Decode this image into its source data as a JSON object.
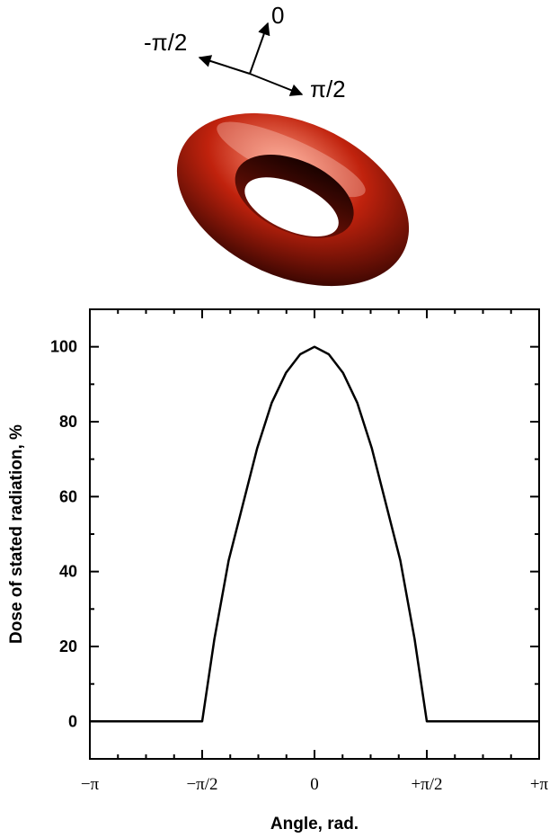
{
  "diagram": {
    "direction_labels": {
      "forward": "0",
      "left": "-π/2",
      "right": "π/2"
    },
    "colors": {
      "torus_light": "#ff9a80",
      "torus_mid": "#c0220d",
      "torus_dark": "#2a0300"
    }
  },
  "chart_data": {
    "type": "line",
    "title": "",
    "xlabel": "Angle, rad.",
    "ylabel": "Dose of stated radiation, %",
    "xlim": [
      -3.14159,
      3.14159
    ],
    "ylim": [
      -10,
      110
    ],
    "grid": false,
    "x_tick_values": [
      -3.14159,
      -1.5708,
      0,
      1.5708,
      3.14159
    ],
    "x_tick_labels": [
      "−π",
      "−π/2",
      "0",
      "+π/2",
      "+π"
    ],
    "y_tick_values": [
      0,
      20,
      40,
      60,
      80,
      100
    ],
    "y_tick_labels": [
      "0",
      "20",
      "40",
      "60",
      "80",
      "100"
    ],
    "series": [
      {
        "color": "#000000",
        "x": [
          -3.14159,
          -1.5708,
          -1.4,
          -1.2,
          -1.0,
          -0.8,
          -0.6,
          -0.4,
          -0.2,
          0,
          0.2,
          0.4,
          0.6,
          0.8,
          1.0,
          1.2,
          1.4,
          1.5708,
          3.14159
        ],
        "y": [
          0,
          0,
          22,
          43,
          58,
          73,
          85,
          93,
          98,
          100,
          98,
          93,
          85,
          73,
          58,
          43,
          22,
          0,
          0
        ]
      }
    ]
  }
}
